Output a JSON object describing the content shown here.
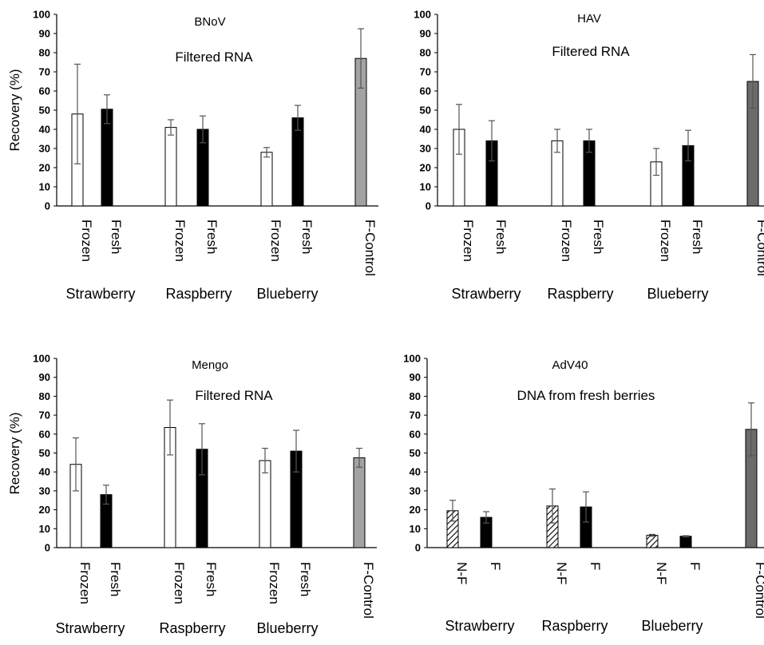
{
  "chart_data": [
    {
      "type": "bar",
      "title": "BNoV",
      "subtitle": "Filtered RNA",
      "ylabel": "Recovery (%)",
      "ylim": [
        0,
        100
      ],
      "yticks": [
        "0",
        "10",
        "20",
        "30",
        "40",
        "50",
        "60",
        "70",
        "80",
        "90",
        "100"
      ],
      "bars": [
        {
          "label": "Frozen",
          "value": 48,
          "error": 26,
          "fill": "white"
        },
        {
          "label": "Fresh",
          "value": 50.5,
          "error": 7.5,
          "fill": "black"
        },
        {
          "label": "Frozen",
          "value": 41,
          "error": 4,
          "fill": "white"
        },
        {
          "label": "Fresh",
          "value": 40,
          "error": 7,
          "fill": "black"
        },
        {
          "label": "Frozen",
          "value": 28,
          "error": 2.5,
          "fill": "white"
        },
        {
          "label": "Fresh",
          "value": 46,
          "error": 6.5,
          "fill": "black"
        },
        {
          "label": "F-Control",
          "value": 77,
          "error": 15.5,
          "fill": "gray"
        }
      ],
      "groups": [
        "Strawberry",
        "Raspberry",
        "Blueberry"
      ],
      "grid": false
    },
    {
      "type": "bar",
      "title": "HAV",
      "subtitle": "Filtered RNA",
      "ylabel": "",
      "ylim": [
        0,
        100
      ],
      "yticks": [
        "0",
        "10",
        "20",
        "30",
        "40",
        "50",
        "60",
        "70",
        "80",
        "90",
        "100"
      ],
      "bars": [
        {
          "label": "Frozen",
          "value": 40,
          "error": 13,
          "fill": "white"
        },
        {
          "label": "Fresh",
          "value": 34,
          "error": 10.5,
          "fill": "black"
        },
        {
          "label": "Frozen",
          "value": 34,
          "error": 6,
          "fill": "white"
        },
        {
          "label": "Fresh",
          "value": 34,
          "error": 6,
          "fill": "black"
        },
        {
          "label": "Frozen",
          "value": 23,
          "error": 7,
          "fill": "white"
        },
        {
          "label": "Fresh",
          "value": 31.5,
          "error": 8,
          "fill": "black"
        },
        {
          "label": "F-Control",
          "value": 65,
          "error": 14,
          "fill": "darkgray"
        }
      ],
      "groups": [
        "Strawberry",
        "Raspberry",
        "Blueberry"
      ],
      "grid": false
    },
    {
      "type": "bar",
      "title": "Mengo",
      "subtitle": "Filtered RNA",
      "ylabel": "Recovery (%)",
      "ylim": [
        0,
        100
      ],
      "yticks": [
        "0",
        "10",
        "20",
        "30",
        "40",
        "50",
        "60",
        "70",
        "80",
        "90",
        "100"
      ],
      "bars": [
        {
          "label": "Frozen",
          "value": 44,
          "error": 14,
          "fill": "white"
        },
        {
          "label": "Fresh",
          "value": 28,
          "error": 5,
          "fill": "black"
        },
        {
          "label": "Frozen",
          "value": 63.5,
          "error": 14.5,
          "fill": "white"
        },
        {
          "label": "Fresh",
          "value": 52,
          "error": 13.5,
          "fill": "black"
        },
        {
          "label": "Frozen",
          "value": 46,
          "error": 6.5,
          "fill": "white"
        },
        {
          "label": "Fresh",
          "value": 51,
          "error": 11,
          "fill": "black"
        },
        {
          "label": "F-Control",
          "value": 47.5,
          "error": 5,
          "fill": "gray"
        }
      ],
      "groups": [
        "Strawberry",
        "Raspberry",
        "Blueberry"
      ],
      "grid": false
    },
    {
      "type": "bar",
      "title": "AdV40",
      "subtitle": "DNA from fresh berries",
      "ylabel": "",
      "ylim": [
        0,
        100
      ],
      "yticks": [
        "0",
        "10",
        "20",
        "30",
        "40",
        "50",
        "60",
        "70",
        "80",
        "90",
        "100"
      ],
      "bars": [
        {
          "label": "N-F",
          "value": 19.5,
          "error": 5.5,
          "fill": "hatched"
        },
        {
          "label": "F",
          "value": 16,
          "error": 3,
          "fill": "black"
        },
        {
          "label": "N-F",
          "value": 22,
          "error": 9,
          "fill": "hatched"
        },
        {
          "label": "F",
          "value": 21.5,
          "error": 8,
          "fill": "black"
        },
        {
          "label": "N-F",
          "value": 6.5,
          "error": 0.5,
          "fill": "hatched"
        },
        {
          "label": "F",
          "value": 6,
          "error": 0.3,
          "fill": "black"
        },
        {
          "label": "F-Control",
          "value": 62.5,
          "error": 14,
          "fill": "darkgray"
        }
      ],
      "groups": [
        "Strawberry",
        "Raspberry",
        "Blueberry"
      ],
      "grid": false
    }
  ],
  "colors": {
    "white": "#ffffff",
    "black": "#000000",
    "gray": "#a3a3a3",
    "darkgray": "#6b6b6b",
    "hatched": "#ffffff",
    "axis": "#000000",
    "error": "#555555"
  }
}
